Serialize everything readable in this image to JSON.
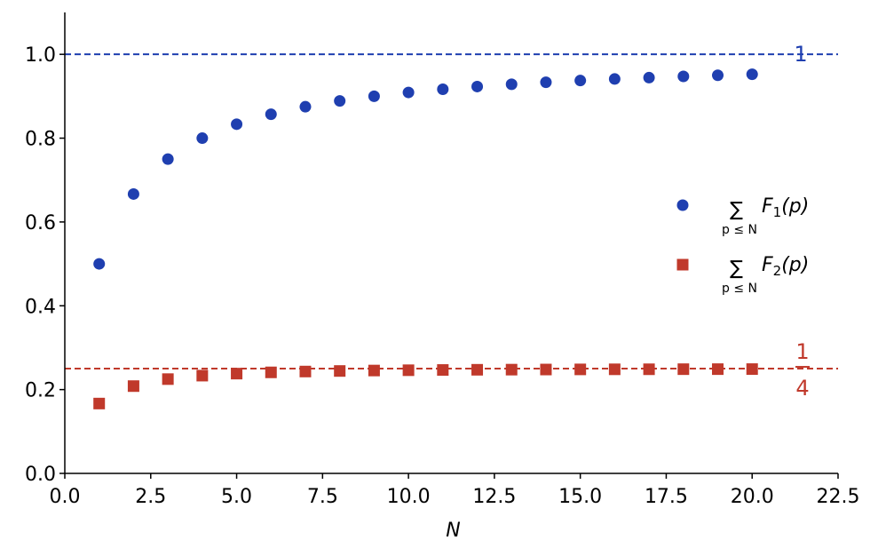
{
  "chart_data": {
    "type": "scatter",
    "title": "",
    "xlabel": "N",
    "ylabel": "",
    "xlim": [
      0,
      22.5
    ],
    "ylim": [
      0,
      1.1
    ],
    "x_ticks": [
      "0.0",
      "2.5",
      "5.0",
      "7.5",
      "10.0",
      "12.5",
      "15.0",
      "17.5",
      "20.0",
      "22.5"
    ],
    "x_tick_values": [
      0,
      2.5,
      5,
      7.5,
      10,
      12.5,
      15,
      17.5,
      20,
      22.5
    ],
    "y_ticks": [
      "0.0",
      "0.2",
      "0.4",
      "0.6",
      "0.8",
      "1.0"
    ],
    "y_tick_values": [
      0,
      0.2,
      0.4,
      0.6,
      0.8,
      1.0
    ],
    "grid": false,
    "legend_position": "right",
    "x": [
      1,
      2,
      3,
      4,
      5,
      6,
      7,
      8,
      9,
      10,
      11,
      12,
      13,
      14,
      15,
      16,
      17,
      18,
      19,
      20
    ],
    "series": [
      {
        "name": "∑ F₁(p)",
        "legend_main": "F",
        "legend_index": "1",
        "legend_arg": "(p)",
        "legend_sub": "p ≤ N",
        "marker": "circle",
        "color": "#1f3fb0",
        "values": [
          0.5,
          0.6667,
          0.75,
          0.8,
          0.8333,
          0.8571,
          0.875,
          0.8889,
          0.9,
          0.9091,
          0.9167,
          0.9231,
          0.9286,
          0.9333,
          0.9375,
          0.9412,
          0.9444,
          0.9474,
          0.95,
          0.9524
        ]
      },
      {
        "name": "∑ F₂(p)",
        "legend_main": "F",
        "legend_index": "2",
        "legend_arg": "(p)",
        "legend_sub": "p ≤ N",
        "marker": "square",
        "color": "#c0392b",
        "values": [
          0.1667,
          0.2083,
          0.225,
          0.2333,
          0.2381,
          0.2411,
          0.2431,
          0.2444,
          0.2455,
          0.2462,
          0.2468,
          0.2473,
          0.2476,
          0.2479,
          0.2482,
          0.2484,
          0.2485,
          0.2487,
          0.2488,
          0.2489
        ]
      }
    ],
    "reference_lines": [
      {
        "y": 1.0,
        "label": "1",
        "color": "#1f3fb0",
        "style": "dashed"
      },
      {
        "y": 0.25,
        "label_num": "1",
        "label_den": "4",
        "color": "#c0392b",
        "style": "dashed"
      }
    ]
  }
}
